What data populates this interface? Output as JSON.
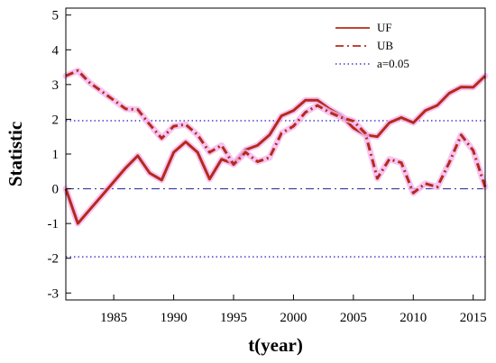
{
  "chart_data": {
    "type": "line",
    "xlabel": "t(year)",
    "ylabel": "Statistic",
    "xlim": [
      1981,
      2016
    ],
    "ylim": [
      -3.2,
      5.2
    ],
    "x_ticks": [
      1985,
      1990,
      1995,
      2000,
      2005,
      2010,
      2015
    ],
    "y_ticks": [
      -3,
      -2,
      -1,
      0,
      1,
      2,
      3,
      4,
      5
    ],
    "grid": false,
    "legend_position": "top-right",
    "reference_lines": [
      {
        "y": 1.96,
        "style": "dotted",
        "color": "#4b3cc9"
      },
      {
        "y": -1.96,
        "style": "dotted",
        "color": "#4b3cc9"
      },
      {
        "y": 0,
        "style": "dash-dot",
        "color": "#3b3b9c"
      }
    ],
    "series": [
      {
        "name": "UF",
        "style": "solid",
        "color": "#b52a1c",
        "x": [
          1981,
          1982,
          1983,
          1984,
          1985,
          1986,
          1987,
          1988,
          1989,
          1990,
          1991,
          1992,
          1993,
          1994,
          1995,
          1996,
          1997,
          1998,
          1999,
          2000,
          2001,
          2002,
          2003,
          2004,
          2005,
          2006,
          2007,
          2008,
          2009,
          2010,
          2011,
          2012,
          2013,
          2014,
          2015,
          2016
        ],
        "values": [
          0.0,
          -1.0,
          -0.6,
          -0.2,
          0.2,
          0.6,
          0.95,
          0.45,
          0.25,
          1.05,
          1.35,
          1.05,
          0.28,
          0.85,
          0.72,
          1.12,
          1.25,
          1.55,
          2.1,
          2.25,
          2.55,
          2.55,
          2.3,
          2.1,
          1.75,
          1.55,
          1.5,
          1.9,
          2.05,
          1.9,
          2.25,
          2.4,
          2.75,
          2.93,
          2.92,
          3.25
        ]
      },
      {
        "name": "UB",
        "style": "dash-dot",
        "color": "#b52a1c",
        "x": [
          1981,
          1982,
          1983,
          1984,
          1985,
          1986,
          1987,
          1988,
          1989,
          1990,
          1991,
          1992,
          1993,
          1994,
          1995,
          1996,
          1997,
          1998,
          1999,
          2000,
          2001,
          2002,
          2003,
          2004,
          2005,
          2006,
          2007,
          2008,
          2009,
          2010,
          2011,
          2012,
          2013,
          2014,
          2015,
          2016
        ],
        "values": [
          3.25,
          3.4,
          3.05,
          2.8,
          2.55,
          2.3,
          2.28,
          1.85,
          1.45,
          1.8,
          1.85,
          1.55,
          1.05,
          1.25,
          0.7,
          1.05,
          0.78,
          0.9,
          1.6,
          1.8,
          2.2,
          2.4,
          2.2,
          2.05,
          1.95,
          1.6,
          0.3,
          0.85,
          0.75,
          -0.12,
          0.15,
          0.05,
          0.75,
          1.55,
          1.1,
          0.05
        ]
      },
      {
        "name": "a=0.05",
        "style": "dotted",
        "color": "#4b3cc9"
      }
    ]
  }
}
